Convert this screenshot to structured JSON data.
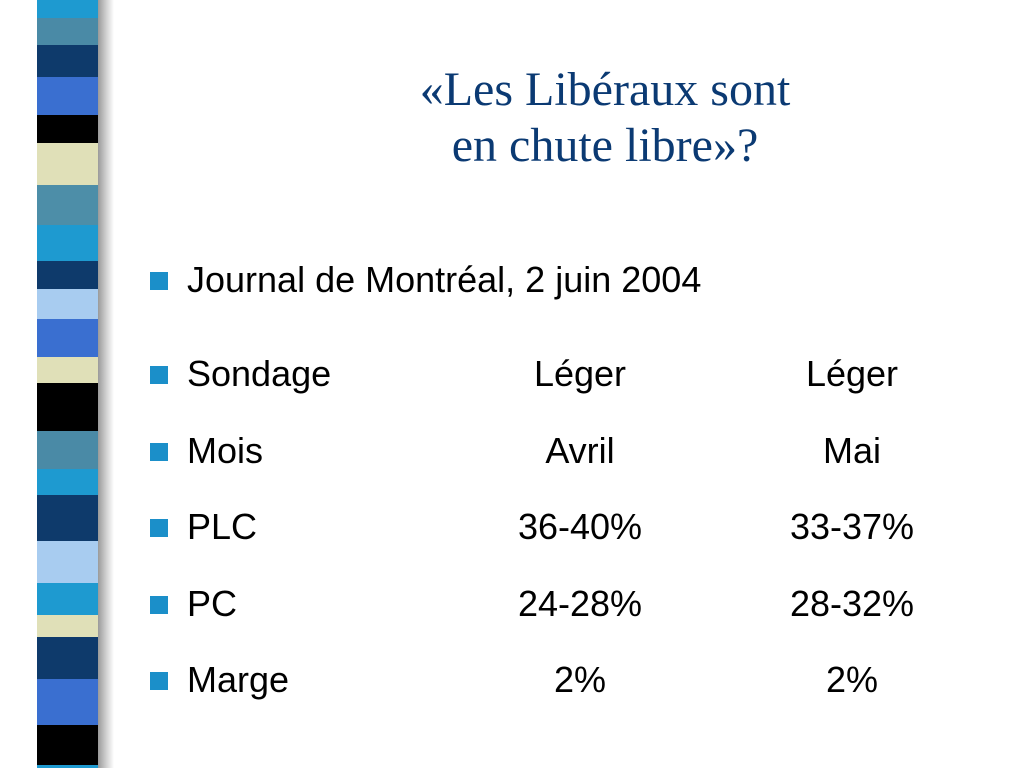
{
  "slide": {
    "title_line1": "«Les Libéraux sont",
    "title_line2": "en chute libre»?",
    "headline": "Journal de Montréal, 2 juin 2004",
    "rows": [
      {
        "label": "Sondage",
        "col1": "Léger",
        "col2": "Léger"
      },
      {
        "label": "Mois",
        "col1": "Avril",
        "col2": "Mai"
      },
      {
        "label": "PLC",
        "col1": "36-40%",
        "col2": "33-37%"
      },
      {
        "label": "PC",
        "col1": "24-28%",
        "col2": "28-32%"
      },
      {
        "label": "Marge",
        "col1": "2%",
        "col2": "2%"
      }
    ]
  },
  "colors": {
    "title": "#0b3a73",
    "bullet": "#1b8fc9",
    "stripes": [
      "#1e9ad0",
      "#4a8aa6",
      "#0e3a6b",
      "#3a6fd0",
      "#000000",
      "#e0e0b8",
      "#4d8ea8",
      "#1e9ad0",
      "#0e3a6b",
      "#a8ccf0",
      "#3a6fd0",
      "#e0e0b8",
      "#000000",
      "#4a8aa6",
      "#1e9ad0",
      "#0e3a6b",
      "#a8ccf0",
      "#1e9ad0",
      "#e0e0b8",
      "#0e3a6b",
      "#3a6fd0",
      "#000000"
    ]
  }
}
